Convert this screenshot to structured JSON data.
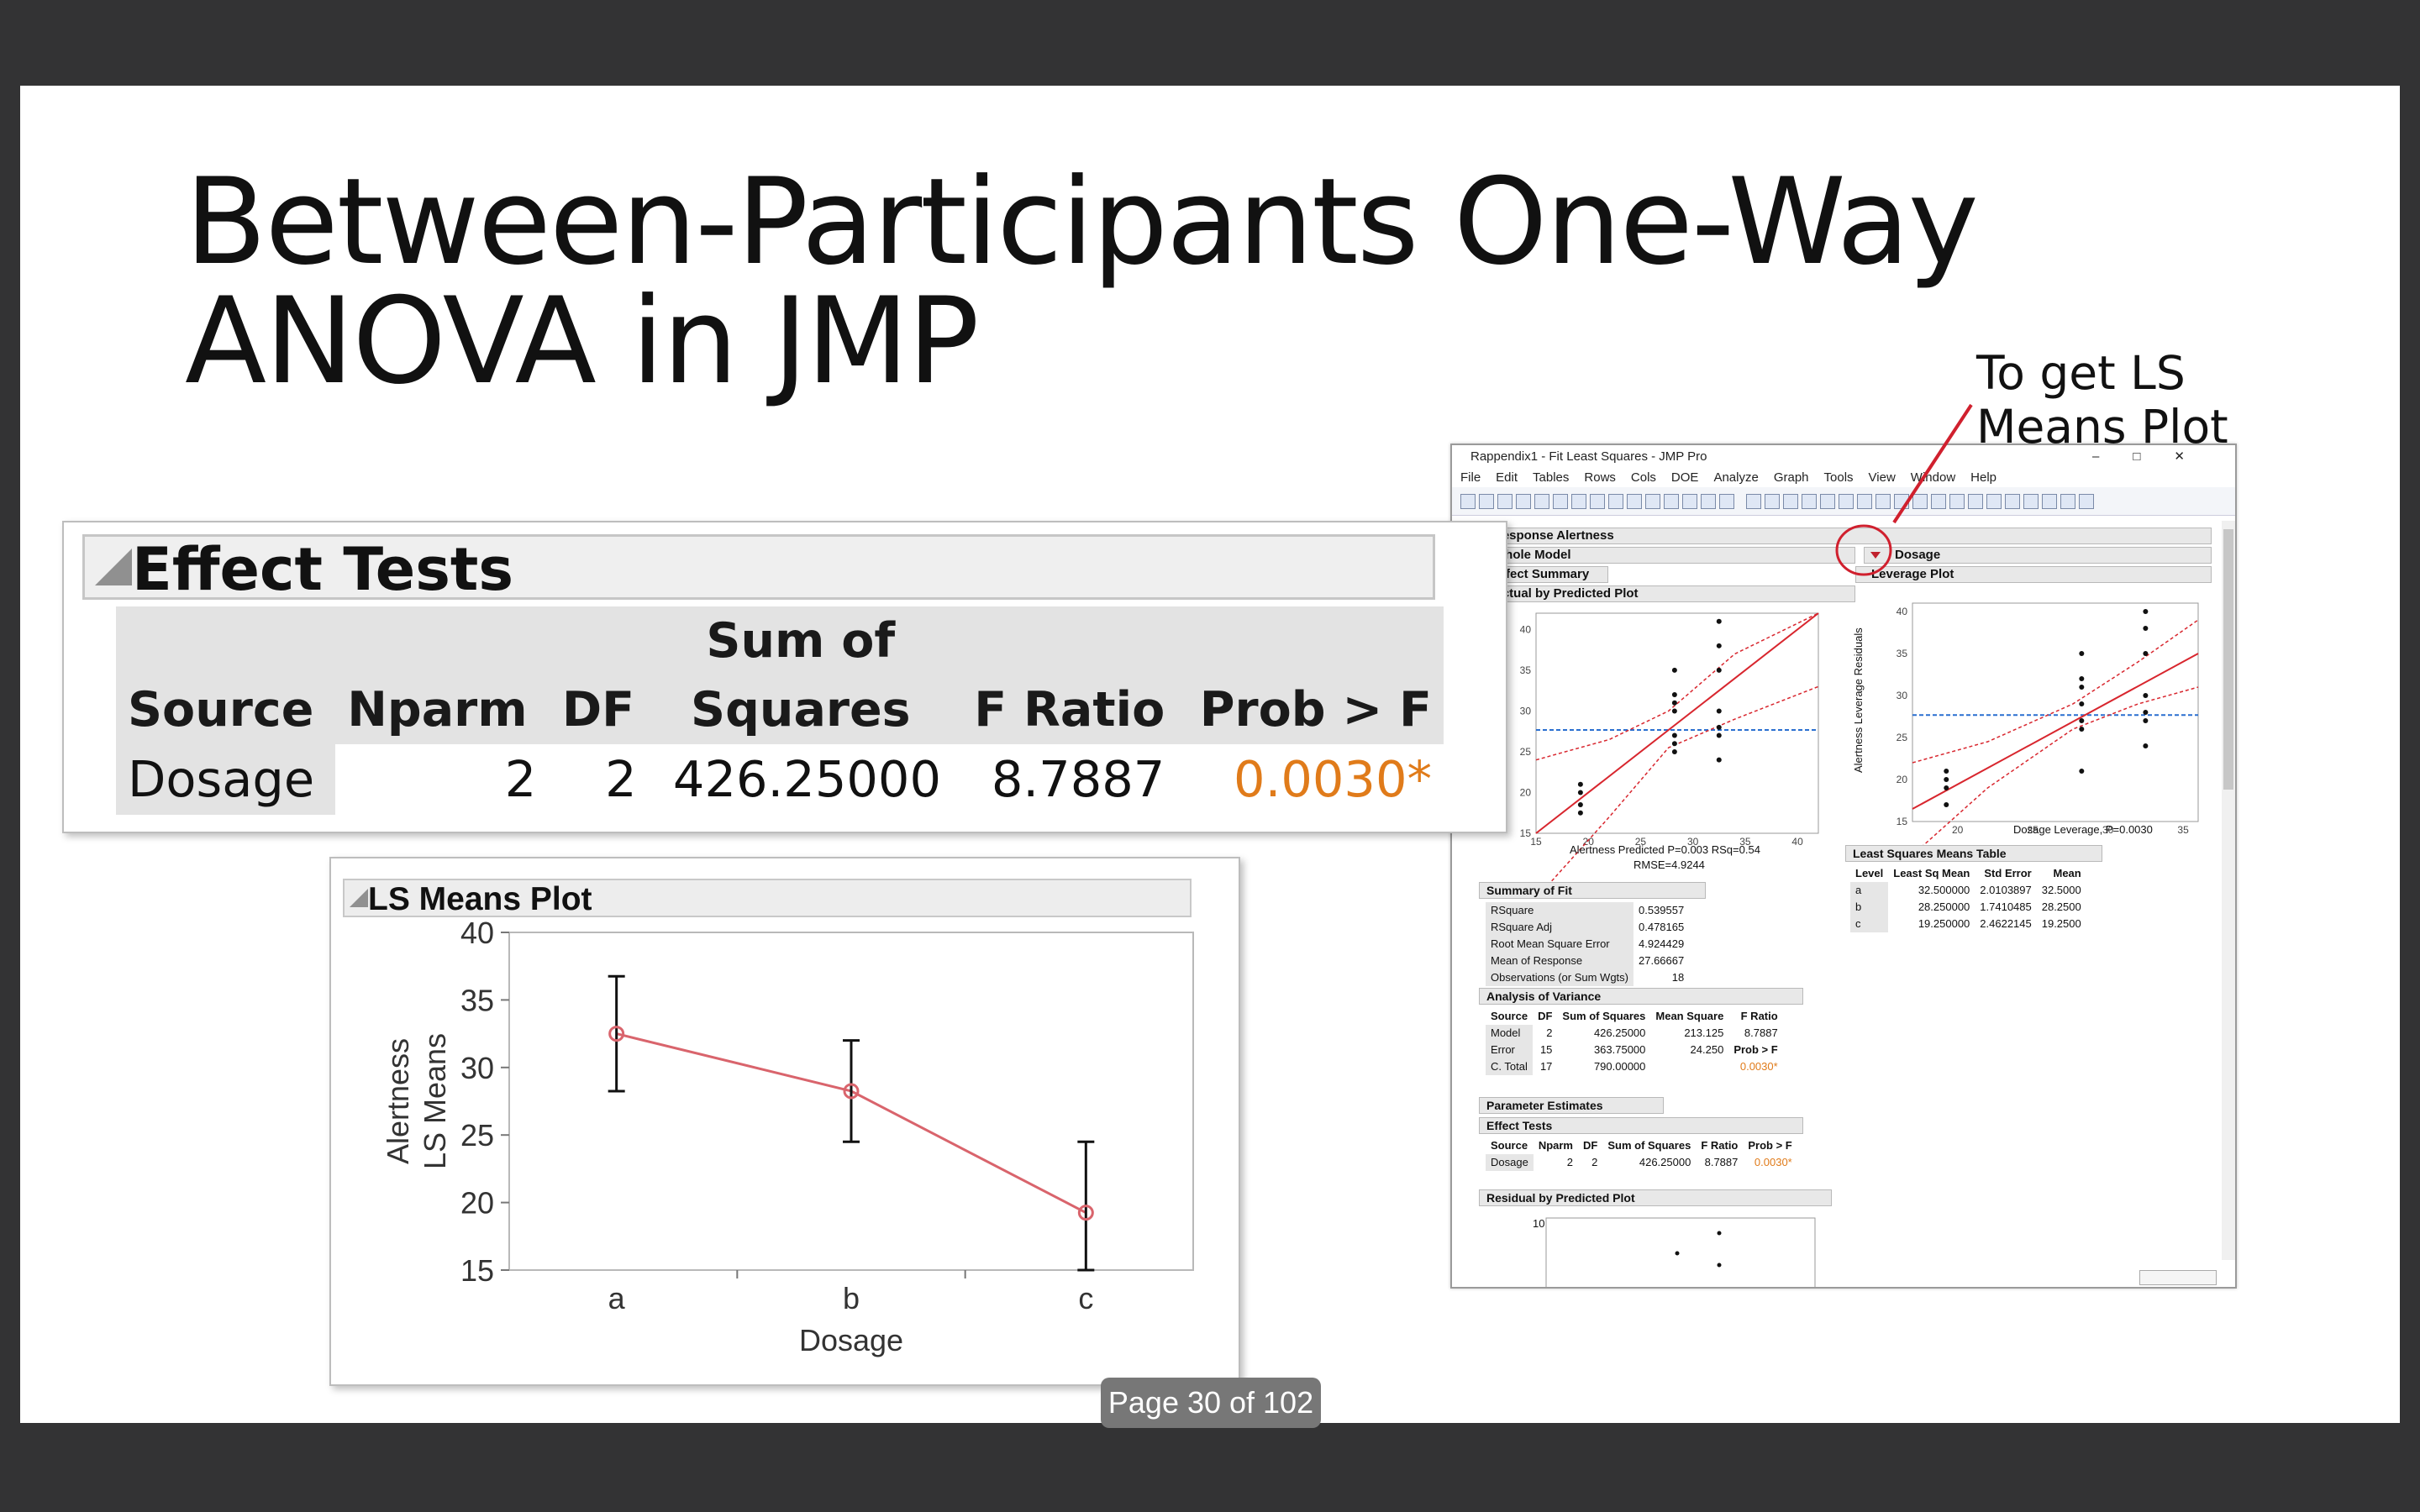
{
  "slide": {
    "title": "Between-Participants One-Way\nANOVA in JMP",
    "annotation": "To get LS\nMeans Plot",
    "page_indicator": "Page 30 of 102"
  },
  "effect_tests": {
    "title": "Effect Tests",
    "headers": [
      "Source",
      "Nparm",
      "DF",
      "Sum of\nSquares",
      "F Ratio",
      "Prob > F"
    ],
    "row": {
      "source": "Dosage",
      "nparm": "2",
      "df": "2",
      "ss": "426.25000",
      "f": "8.7887",
      "p": "0.0030*"
    },
    "p_color": "#e07b1a"
  },
  "ls_means": {
    "title": "LS Means Plot",
    "chart_data": {
      "type": "line",
      "categories": [
        "a",
        "b",
        "c"
      ],
      "values": [
        32.5,
        28.25,
        19.25
      ],
      "error_low": [
        28.25,
        24.5,
        15.0
      ],
      "error_high": [
        36.75,
        32.0,
        24.5
      ],
      "xlabel": "Dosage",
      "ylabel": "Alertness\nLS Means",
      "ylim": [
        15,
        40
      ],
      "yticks": [
        "15",
        "20",
        "25",
        "30",
        "35",
        "40"
      ],
      "line_color": "#d9646c",
      "grid": false
    }
  },
  "jmp": {
    "window_title": "Rappendix1 - Fit Least Squares - JMP Pro",
    "menus": [
      "File",
      "Edit",
      "Tables",
      "Rows",
      "Cols",
      "DOE",
      "Analyze",
      "Graph",
      "Tools",
      "View",
      "Window",
      "Help"
    ],
    "outline": {
      "response": "Response Alertness",
      "whole_model": "Whole Model",
      "effect_summary": "Effect Summary",
      "actual_by_predicted": "Actual by Predicted Plot",
      "dosage": "Dosage",
      "leverage_plot": "Leverage Plot",
      "summary_of_fit": "Summary of Fit",
      "anova": "Analysis of Variance",
      "param_est": "Parameter Estimates",
      "effect_tests": "Effect Tests",
      "residual": "Residual by Predicted Plot",
      "lsmeans_table": "Least Squares Means Table"
    },
    "avp_caption": "Alertness Predicted P=0.003 RSq=0.54",
    "avp_caption2": "RMSE=4.9244",
    "avp_xticks": [
      "15",
      "20",
      "25",
      "30",
      "35",
      "40"
    ],
    "avp_yticks": [
      "15",
      "20",
      "25",
      "30",
      "35",
      "40"
    ],
    "lev_caption": "Dosage Leverage, P=0.0030",
    "lev_ylabel": "Alertness Leverage Residuals",
    "lev_xticks": [
      "20",
      "25",
      "30",
      "35"
    ],
    "lev_yticks": [
      "15",
      "20",
      "25",
      "30",
      "35",
      "40"
    ],
    "resid_ytick": "10",
    "sof": [
      [
        "RSquare",
        "0.539557"
      ],
      [
        "RSquare Adj",
        "0.478165"
      ],
      [
        "Root Mean Square Error",
        "4.924429"
      ],
      [
        "Mean of Response",
        "27.66667"
      ],
      [
        "Observations (or Sum Wgts)",
        "18"
      ]
    ],
    "anova_hdr": [
      "Source",
      "DF",
      "Sum of Squares",
      "Mean Square",
      "F Ratio"
    ],
    "anova_rows": [
      [
        "Model",
        "2",
        "426.25000",
        "213.125",
        "8.7887"
      ],
      [
        "Error",
        "15",
        "363.75000",
        "24.250",
        "Prob > F"
      ],
      [
        "C. Total",
        "17",
        "790.00000",
        "",
        "0.0030*"
      ]
    ],
    "et_hdr": [
      "Source",
      "Nparm",
      "DF",
      "Sum of Squares",
      "F Ratio",
      "Prob > F"
    ],
    "et_row": [
      "Dosage",
      "2",
      "2",
      "426.25000",
      "8.7887",
      "0.0030*"
    ],
    "lsm_hdr": [
      "Level",
      "Least Sq Mean",
      "Std Error",
      "Mean"
    ],
    "lsm_rows": [
      [
        "a",
        "32.500000",
        "2.0103897",
        "32.5000"
      ],
      [
        "b",
        "28.250000",
        "1.7410485",
        "28.2500"
      ],
      [
        "c",
        "19.250000",
        "2.4622145",
        "19.2500"
      ]
    ]
  }
}
